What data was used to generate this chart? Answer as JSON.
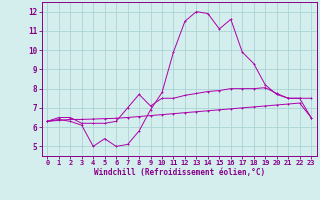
{
  "title": "",
  "xlabel": "Windchill (Refroidissement éolien,°C)",
  "ylabel": "",
  "background_color": "#d4eeee",
  "grid_color": "#aad4d4",
  "line_color": "#aa00aa",
  "spine_color": "#880088",
  "tick_color": "#880088",
  "xlim": [
    -0.5,
    23.5
  ],
  "ylim": [
    4.5,
    12.5
  ],
  "xticks": [
    0,
    1,
    2,
    3,
    4,
    5,
    6,
    7,
    8,
    9,
    10,
    11,
    12,
    13,
    14,
    15,
    16,
    17,
    18,
    19,
    20,
    21,
    22,
    23
  ],
  "yticks": [
    5,
    6,
    7,
    8,
    9,
    10,
    11,
    12
  ],
  "x": [
    0,
    1,
    2,
    3,
    4,
    5,
    6,
    7,
    8,
    9,
    10,
    11,
    12,
    13,
    14,
    15,
    16,
    17,
    18,
    19,
    20,
    21,
    22,
    23
  ],
  "line1": [
    6.3,
    6.4,
    6.3,
    6.1,
    5.0,
    5.4,
    5.0,
    5.1,
    5.8,
    6.9,
    7.8,
    9.9,
    11.5,
    12.0,
    11.9,
    11.1,
    11.6,
    9.9,
    9.3,
    8.2,
    7.7,
    7.5,
    7.5,
    7.5
  ],
  "line2": [
    6.3,
    6.5,
    6.5,
    6.2,
    6.2,
    6.2,
    6.3,
    7.0,
    7.7,
    7.1,
    7.5,
    7.5,
    7.65,
    7.75,
    7.85,
    7.9,
    8.0,
    8.0,
    8.0,
    8.05,
    7.75,
    7.5,
    7.5,
    6.5
  ],
  "line3": [
    6.3,
    6.35,
    6.4,
    6.4,
    6.42,
    6.44,
    6.46,
    6.5,
    6.55,
    6.6,
    6.65,
    6.7,
    6.75,
    6.8,
    6.85,
    6.9,
    6.95,
    7.0,
    7.05,
    7.1,
    7.15,
    7.2,
    7.25,
    6.5
  ]
}
